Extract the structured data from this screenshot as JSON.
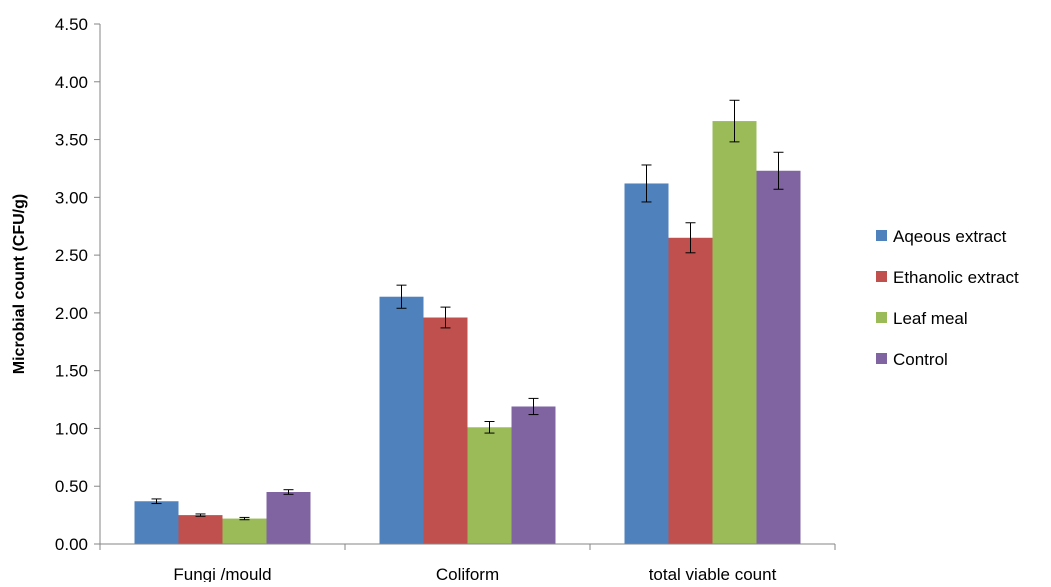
{
  "chart_data": {
    "type": "bar",
    "title": "",
    "xlabel": "",
    "ylabel": "Microbial count (CFU/g)",
    "ylim": [
      0,
      4.5
    ],
    "yticks": [
      0,
      0.5,
      1.0,
      1.5,
      2.0,
      2.5,
      3.0,
      3.5,
      4.0,
      4.5
    ],
    "ytick_labels": [
      "0.00",
      "0.50",
      "1.00",
      "1.50",
      "2.00",
      "2.50",
      "3.00",
      "3.50",
      "4.00",
      "4.50"
    ],
    "grid": false,
    "legend_position": "right",
    "categories": [
      "Fungi /mould",
      "Coliform",
      "total viable count"
    ],
    "series": [
      {
        "name": "Aqeous extract",
        "color": "#4F81BD",
        "values": [
          0.37,
          2.14,
          3.12
        ],
        "errors": [
          0.02,
          0.1,
          0.16
        ]
      },
      {
        "name": "Ethanolic extract",
        "color": "#C0504D",
        "values": [
          0.25,
          1.96,
          2.65
        ],
        "errors": [
          0.01,
          0.09,
          0.13
        ]
      },
      {
        "name": "Leaf meal",
        "color": "#9BBB59",
        "values": [
          0.22,
          1.01,
          3.66
        ],
        "errors": [
          0.01,
          0.05,
          0.18
        ]
      },
      {
        "name": "Control",
        "color": "#8064A2",
        "values": [
          0.45,
          1.19,
          3.23
        ],
        "errors": [
          0.02,
          0.07,
          0.16
        ]
      }
    ]
  }
}
